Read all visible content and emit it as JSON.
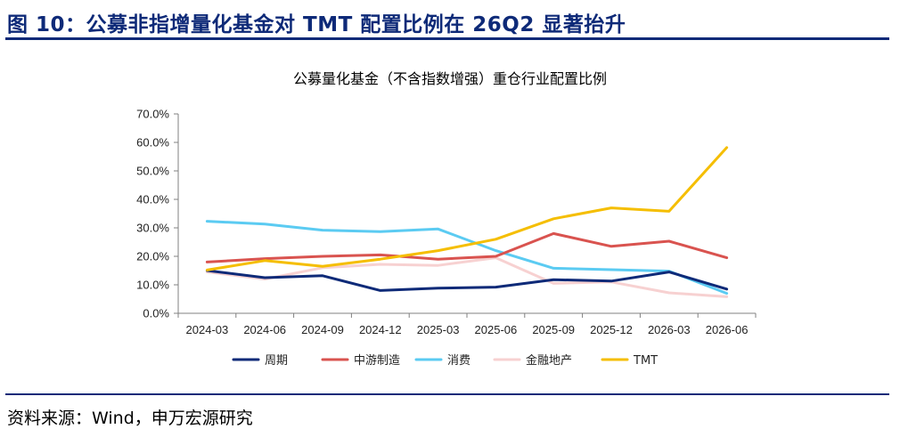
{
  "header": {
    "figure_title": "图 10：公募非指增量化基金对 TMT 配置比例在 26Q2 显著抬升"
  },
  "footer": {
    "source": "资料来源：Wind，申万宏源研究"
  },
  "chart_data": {
    "type": "line",
    "title": "公募量化基金（不含指数增强）重仓行业配置比例",
    "xlabel": "",
    "ylabel": "",
    "categories": [
      "2024-03",
      "2024-06",
      "2024-09",
      "2024-12",
      "2025-03",
      "2025-06",
      "2025-09",
      "2025-12",
      "2026-03",
      "2026-06"
    ],
    "y_ticks": [
      "0.0%",
      "10.0%",
      "20.0%",
      "30.0%",
      "40.0%",
      "50.0%",
      "60.0%",
      "70.0%"
    ],
    "ylim": [
      0,
      70
    ],
    "grid": false,
    "legend_position": "bottom",
    "series": [
      {
        "name": "周期",
        "color": "#0e2a78",
        "values": [
          15.0,
          12.5,
          13.2,
          8.0,
          8.8,
          9.2,
          11.8,
          11.3,
          14.5,
          8.5
        ]
      },
      {
        "name": "中游制造",
        "color": "#d9534f",
        "values": [
          18.0,
          19.2,
          20.0,
          20.5,
          19.0,
          20.0,
          28.0,
          23.5,
          25.3,
          19.5
        ]
      },
      {
        "name": "消费",
        "color": "#5bcbf2",
        "values": [
          32.3,
          31.3,
          29.2,
          28.7,
          29.6,
          22.0,
          15.8,
          15.3,
          14.8,
          7.0
        ]
      },
      {
        "name": "金融地产",
        "color": "#f7d1d1",
        "values": [
          14.5,
          12.0,
          16.0,
          17.2,
          16.8,
          19.5,
          10.5,
          11.0,
          7.2,
          5.8
        ]
      },
      {
        "name": "TMT",
        "color": "#f5be00",
        "values": [
          15.2,
          18.5,
          16.5,
          19.0,
          22.0,
          26.0,
          33.2,
          37.0,
          35.8,
          58.2
        ]
      }
    ]
  }
}
